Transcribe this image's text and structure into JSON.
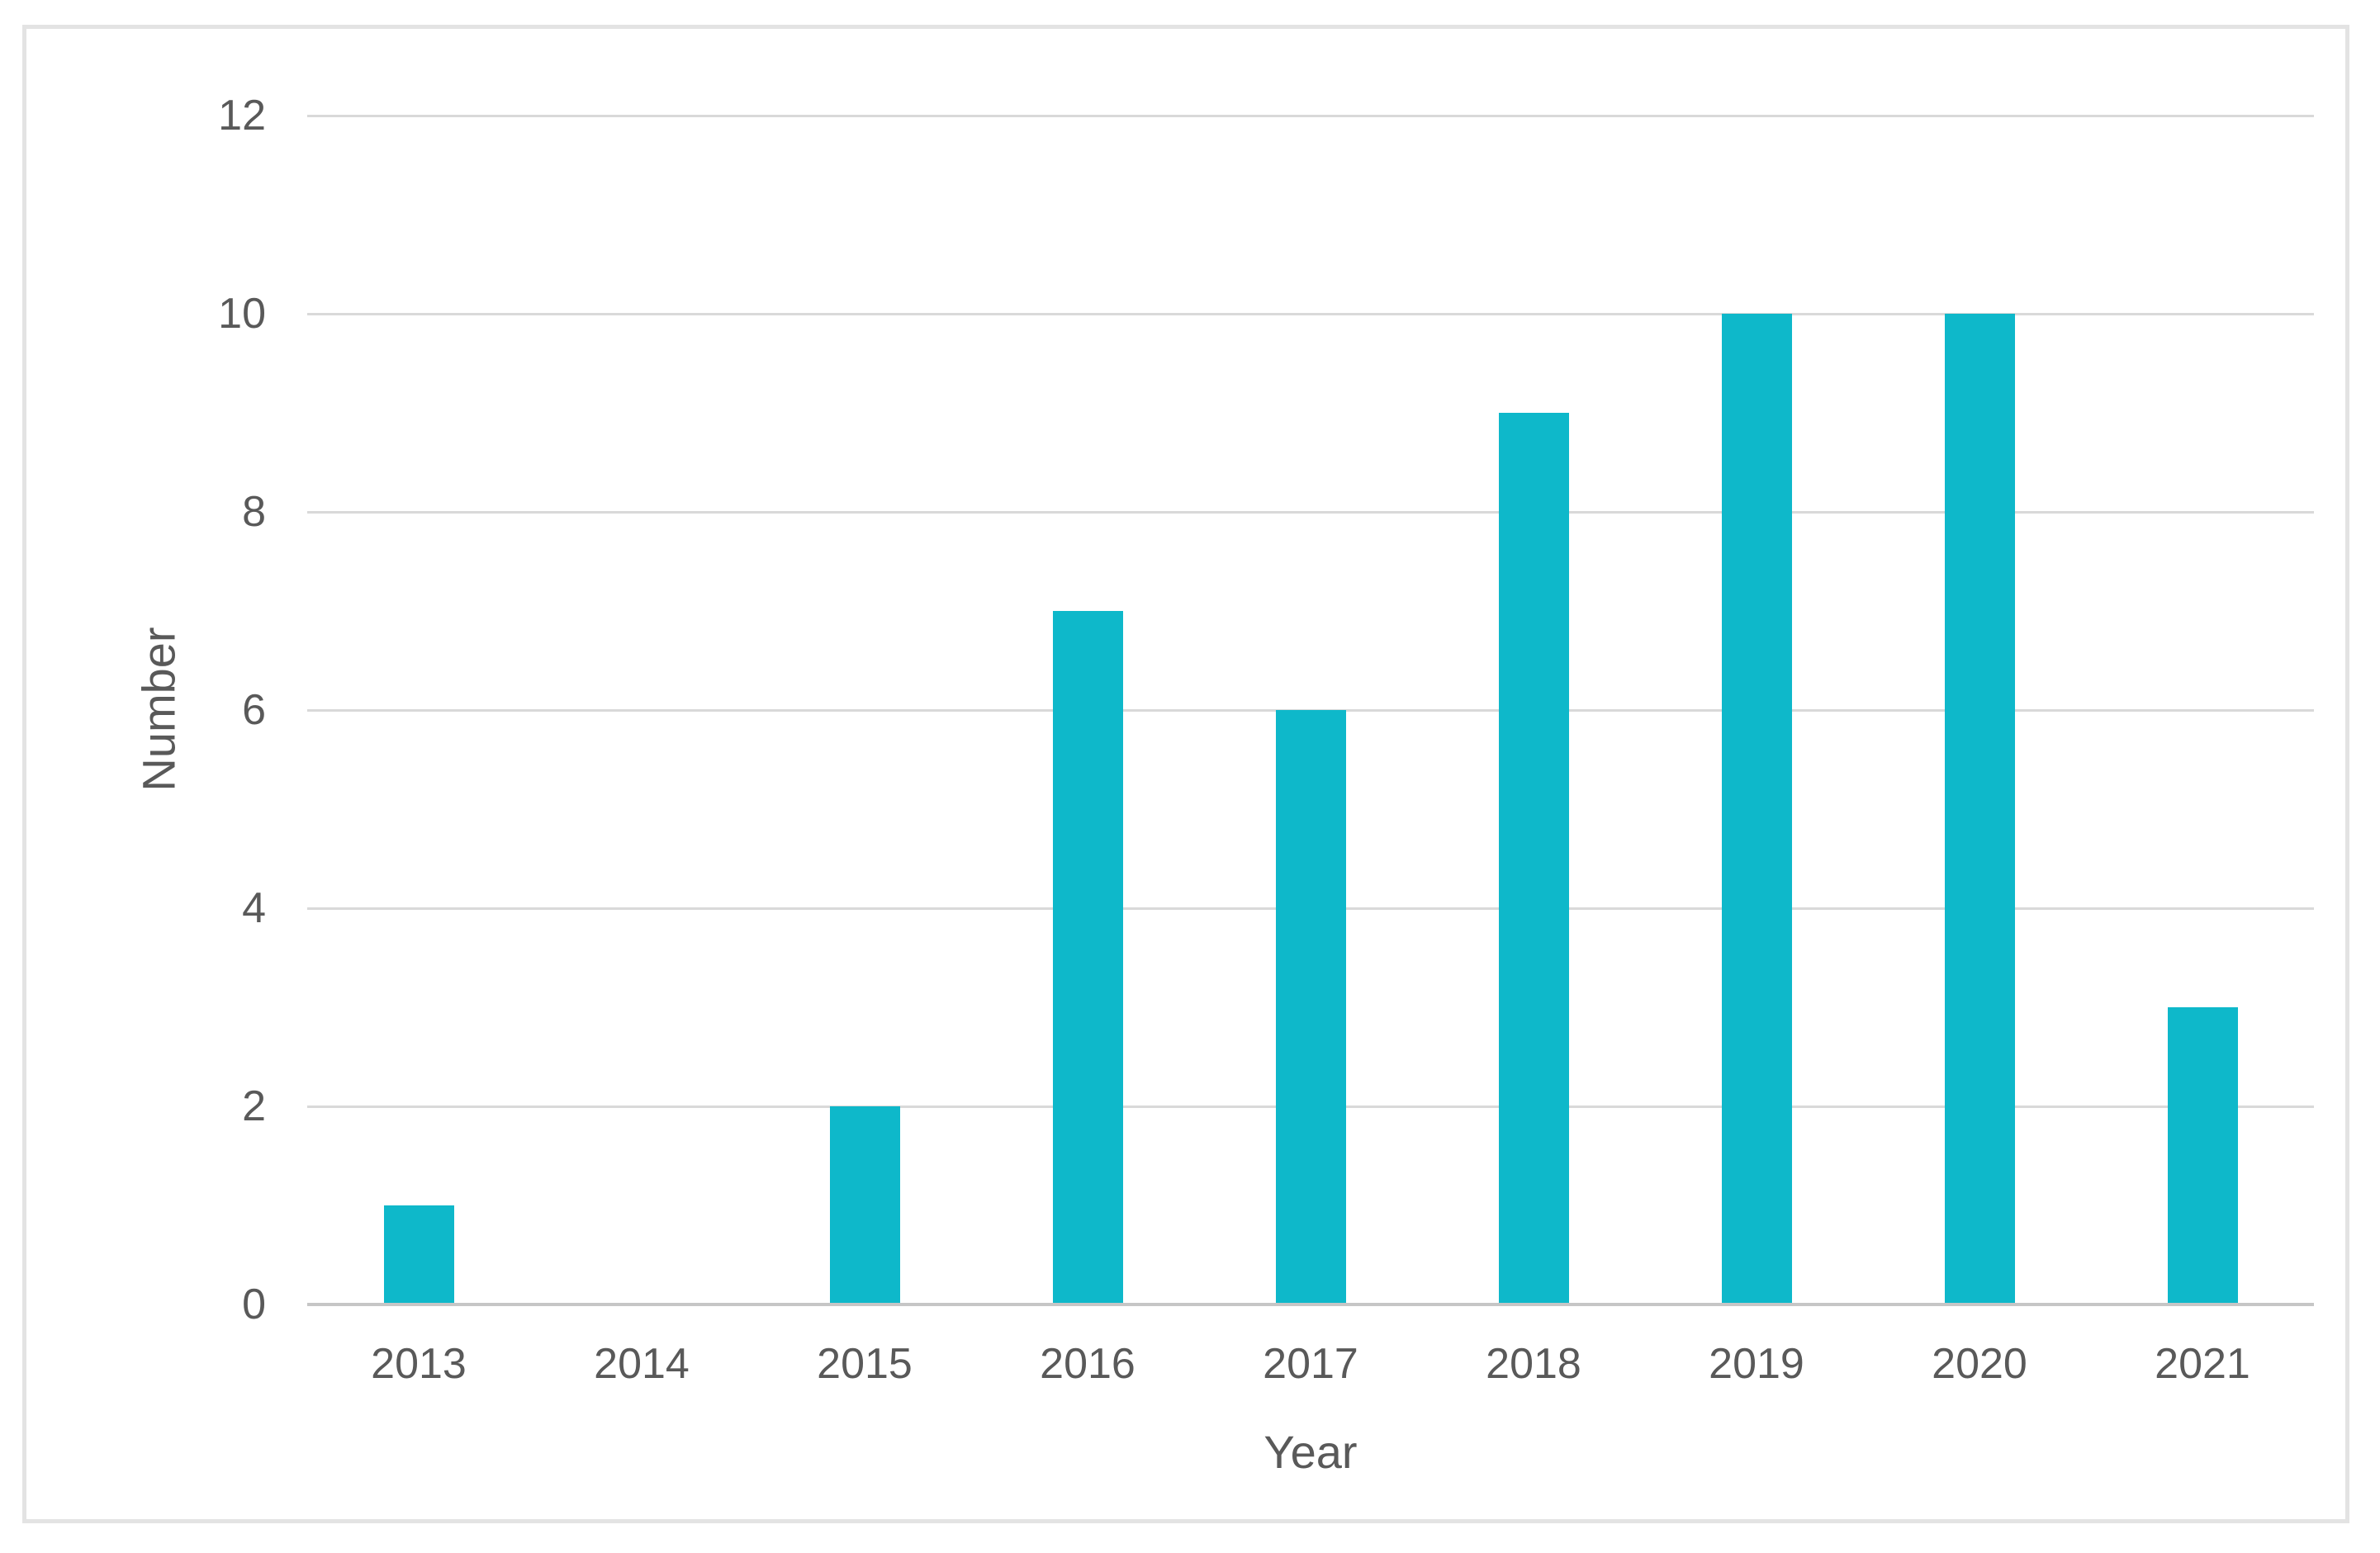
{
  "chart_data": {
    "type": "bar",
    "title": "",
    "categories": [
      "2013",
      "2014",
      "2015",
      "2016",
      "2017",
      "2018",
      "2019",
      "2020",
      "2021"
    ],
    "values": [
      1,
      0,
      2,
      7,
      6,
      9,
      10,
      10,
      3
    ],
    "xlabel": "Year",
    "ylabel": "Number",
    "ylim": [
      0,
      12
    ],
    "yticks": [
      0,
      2,
      4,
      6,
      8,
      10,
      12
    ],
    "grid": true,
    "legend": false,
    "bar_color": "#0eb8ca",
    "gridline_color": "#d9d9d9",
    "axis_line_color": "#c6c6c6",
    "label_color": "#595959",
    "frame_border_color": "#e3e3e3",
    "background_color": "#ffffff"
  }
}
